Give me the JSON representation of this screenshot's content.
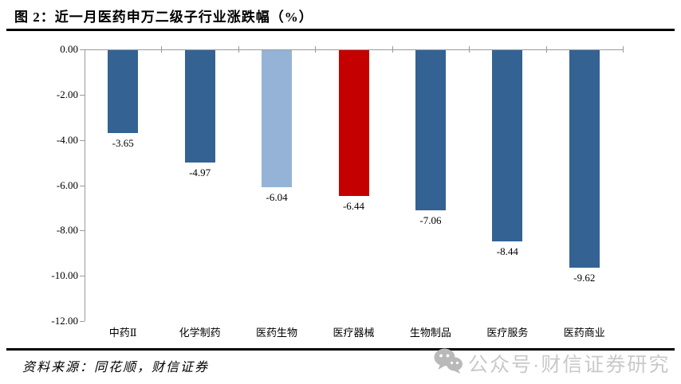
{
  "header": {
    "title": "图 2：近一月医药申万二级子行业涨跌幅（%）"
  },
  "footer": {
    "source_note": "资料来源：同花顺，财信证券",
    "watermark_icon": "wechat-icon",
    "watermark_text": "公众号·财信证券研究"
  },
  "colors": {
    "bar_default": "#346292",
    "bar_light_blue": "#95B3D7",
    "bar_red": "#C40000",
    "axis": "#999999",
    "rule": "#000000",
    "watermark": "#C9C9C9"
  },
  "chart_data": {
    "type": "bar",
    "title": "近一月医药申万二级子行业涨跌幅（%）",
    "categories": [
      "中药Ⅱ",
      "化学制药",
      "医药生物",
      "医疗器械",
      "生物制品",
      "医疗服务",
      "医药商业"
    ],
    "values": [
      -3.65,
      -4.97,
      -6.04,
      -6.44,
      -7.06,
      -8.44,
      -9.62
    ],
    "data_labels": [
      "-3.65",
      "-4.97",
      "-6.04",
      "-6.44",
      "-7.06",
      "-8.44",
      "-9.62"
    ],
    "bar_colors": [
      "#346292",
      "#346292",
      "#95B3D7",
      "#C40000",
      "#346292",
      "#346292",
      "#346292"
    ],
    "xlabel": "",
    "ylabel": "",
    "ylim": [
      -12,
      0
    ],
    "y_ticks": [
      0,
      -2,
      -4,
      -6,
      -8,
      -10,
      -12
    ],
    "y_tick_labels": [
      "0.00",
      "-2.00",
      "-4.00",
      "-6.00",
      "-8.00",
      "-10.00",
      "-12.00"
    ],
    "grid": false,
    "legend": "none"
  }
}
